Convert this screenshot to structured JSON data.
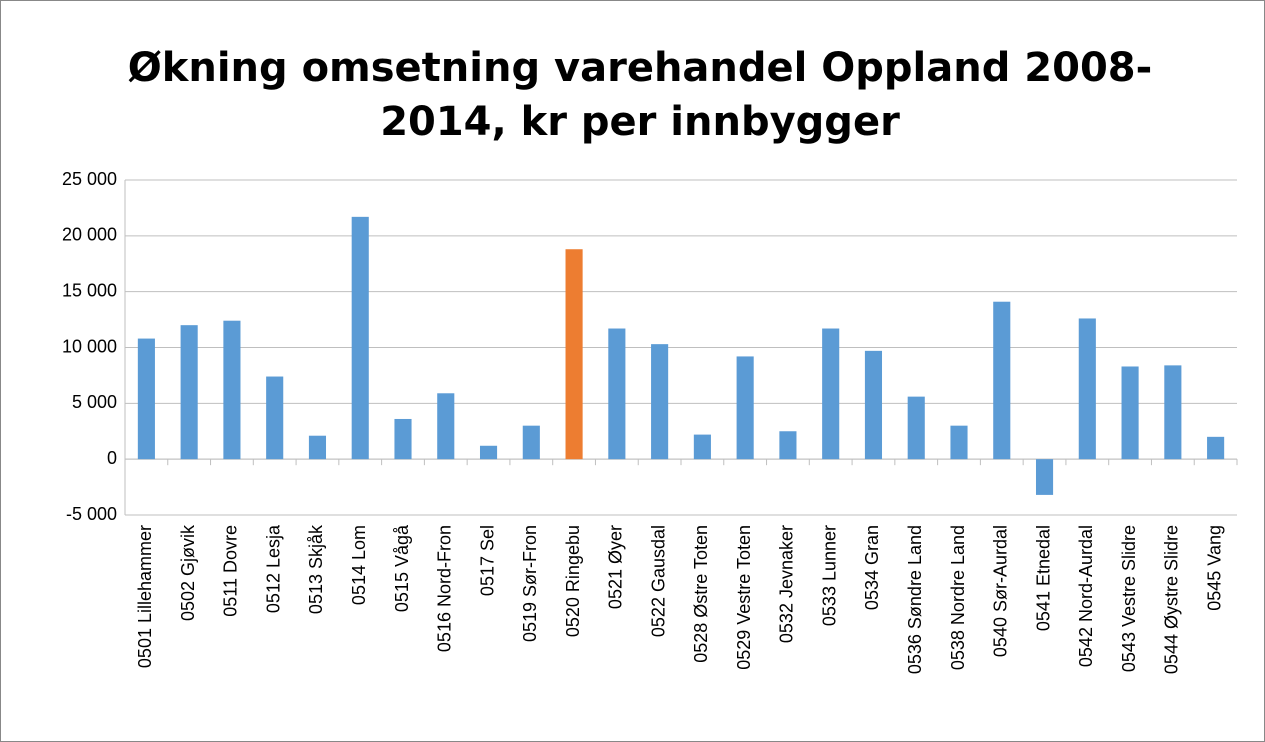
{
  "chart_data": {
    "type": "bar",
    "title": [
      "Økning omsetning varehandel Oppland 2008-",
      "2014, kr per innbygger"
    ],
    "categories": [
      "0501 Lillehammer",
      "0502 Gjøvik",
      "0511 Dovre",
      "0512 Lesja",
      "0513 Skjåk",
      "0514 Lom",
      "0515 Vågå",
      "0516 Nord-Fron",
      "0517 Sel",
      "0519 Sør-Fron",
      "0520 Ringebu",
      "0521 Øyer",
      "0522 Gausdal",
      "0528 Østre Toten",
      "0529 Vestre Toten",
      "0532 Jevnaker",
      "0533 Lunner",
      "0534 Gran",
      "0536 Søndre Land",
      "0538 Nordre Land",
      "0540 Sør-Aurdal",
      "0541 Etnedal",
      "0542 Nord-Aurdal",
      "0543 Vestre Slidre",
      "0544 Øystre Slidre",
      "0545 Vang"
    ],
    "values": [
      10800,
      12000,
      12400,
      7400,
      2100,
      21700,
      3600,
      5900,
      1200,
      3000,
      18800,
      11700,
      10300,
      2200,
      9200,
      2500,
      11700,
      9700,
      5600,
      3000,
      14100,
      -3200,
      12600,
      8300,
      8400,
      2000
    ],
    "colors": [
      "#5b9bd5",
      "#5b9bd5",
      "#5b9bd5",
      "#5b9bd5",
      "#5b9bd5",
      "#5b9bd5",
      "#5b9bd5",
      "#5b9bd5",
      "#5b9bd5",
      "#5b9bd5",
      "#ed7d31",
      "#5b9bd5",
      "#5b9bd5",
      "#5b9bd5",
      "#5b9bd5",
      "#5b9bd5",
      "#5b9bd5",
      "#5b9bd5",
      "#5b9bd5",
      "#5b9bd5",
      "#5b9bd5",
      "#5b9bd5",
      "#5b9bd5",
      "#5b9bd5",
      "#5b9bd5",
      "#5b9bd5"
    ],
    "ylim": [
      -5000,
      25000
    ],
    "yticks": [
      {
        "value": -5000,
        "label": "-5 000"
      },
      0,
      {
        "value": 5000,
        "label": "5 000"
      },
      {
        "value": 10000,
        "label": "10 000"
      },
      {
        "value": 15000,
        "label": "15 000"
      },
      {
        "value": 20000,
        "label": "20 000"
      },
      {
        "value": 25000,
        "label": "25 000"
      }
    ],
    "grid": true
  }
}
